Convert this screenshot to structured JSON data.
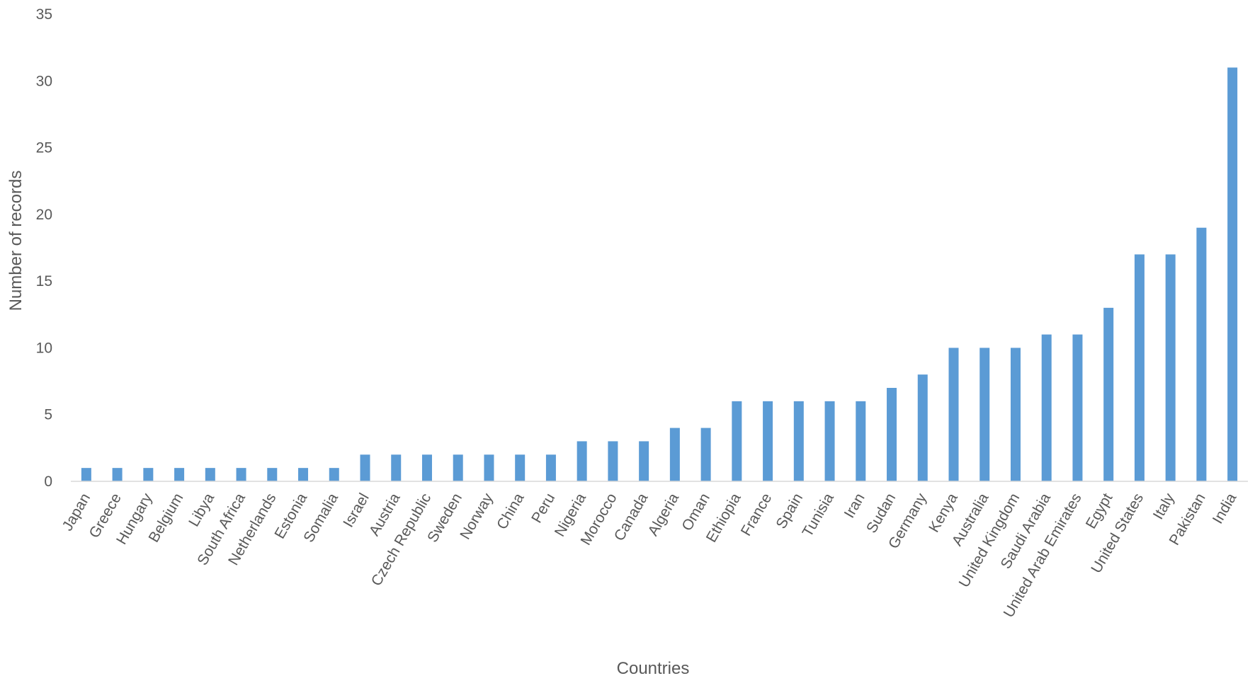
{
  "chart_data": {
    "type": "bar",
    "title": "",
    "xlabel": "Countries",
    "ylabel": "Number of records",
    "ylim": [
      0,
      35
    ],
    "yticks": [
      0,
      5,
      10,
      15,
      20,
      25,
      30,
      35
    ],
    "grid": false,
    "legend": "none",
    "bar_color": "#5b9bd5",
    "categories": [
      "Japan",
      "Greece",
      "Hungary",
      "Belgium",
      "Libya",
      "South Africa",
      "Netherlands",
      "Estonia",
      "Somalia",
      "Israel",
      "Austria",
      "Czech Republic",
      "Sweden",
      "Norway",
      "China",
      "Peru",
      "Nigeria",
      "Morocco",
      "Canada",
      "Algeria",
      "Oman",
      "Ethiopia",
      "France",
      "Spain",
      "Tunisia",
      "Iran",
      "Sudan",
      "Germany",
      "Kenya",
      "Australia",
      "United Kingdom",
      "Saudi Arabia",
      "United Arab Emirates",
      "Egypt",
      "United States",
      "Italy",
      "Pakistan",
      "India"
    ],
    "values": [
      1,
      1,
      1,
      1,
      1,
      1,
      1,
      1,
      1,
      2,
      2,
      2,
      2,
      2,
      2,
      2,
      3,
      3,
      3,
      4,
      4,
      6,
      6,
      6,
      6,
      6,
      7,
      8,
      10,
      10,
      10,
      11,
      11,
      13,
      17,
      17,
      19,
      31
    ]
  }
}
